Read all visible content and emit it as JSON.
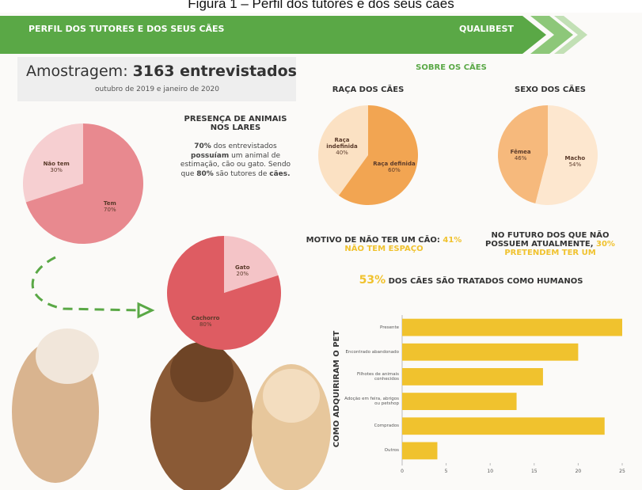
{
  "caption": "Figura 1 – Perfil dos tutores e dos seus cães",
  "banner": {
    "title": "PERFIL DOS TUTORES E DOS SEUS CÃES",
    "brand": "QUALIBEST"
  },
  "sample": {
    "label": "Amostragem:",
    "count": "3163 entrevistados",
    "period": "outubro de 2019 e janeiro de 2020"
  },
  "presence_text": [
    "70%",
    " dos entrevistados ",
    "possuíam",
    " um animal de estimação, cão ou gato. Sendo que ",
    "80%",
    " são tutores de ",
    "cães."
  ],
  "dogs_heading": "SOBRE OS CÃES",
  "reason": {
    "lead": "MOTIVO DE NÃO TER UM CÃO:",
    "highlight": "41% NÃO TEM ESPAÇO"
  },
  "future": {
    "lead": "NO FUTURO DOS QUE NÃO POSSUEM ATUALMENTE,",
    "highlight": "30% PRETENDEM TER UM"
  },
  "human": {
    "highlight": "53%",
    "text": "DOS CÃES SÃO TRATADOS COMO HUMANOS"
  },
  "chart_data": [
    {
      "type": "pie",
      "title": "PRESENÇA DE ANIMAIS NOS LARES",
      "categories": [
        "Não tem",
        "Tem"
      ],
      "values": [
        30,
        70
      ],
      "value_labels": [
        "30%",
        "70%"
      ],
      "colors": [
        "#f6cfd1",
        "#e8898f"
      ]
    },
    {
      "type": "pie",
      "categories": [
        "Gato",
        "Cachorro"
      ],
      "values": [
        20,
        80
      ],
      "value_labels": [
        "20%",
        "80%"
      ],
      "colors": [
        "#f4c4c7",
        "#de5c62"
      ]
    },
    {
      "type": "pie",
      "title": "RAÇA DOS CÃES",
      "categories": [
        "Raça indefinida",
        "Raça definida"
      ],
      "values": [
        40,
        60
      ],
      "value_labels": [
        "40%",
        "60%"
      ],
      "colors": [
        "#fbe1c3",
        "#f2a552"
      ]
    },
    {
      "type": "pie",
      "title": "SEXO DOS CÃES",
      "categories": [
        "Fêmea",
        "Macho"
      ],
      "values": [
        46,
        54
      ],
      "value_labels": [
        "46%",
        "54%"
      ],
      "colors": [
        "#f6b97c",
        "#fde7cf"
      ]
    },
    {
      "type": "bar",
      "orientation": "horizontal",
      "y_label": "COMO ADQUIRIRAM O PET",
      "categories": [
        "Presente",
        "Encontrado abandonado",
        "Filhotes de animais conhecidos",
        "Adoção em feira, abrigos ou petshop",
        "Comprados",
        "Outros"
      ],
      "values": [
        25,
        20,
        16,
        13,
        23,
        4
      ],
      "color": "#f0c22e",
      "xlim": [
        0,
        25
      ],
      "xticks": [
        0,
        5,
        10,
        15,
        20,
        25
      ]
    }
  ]
}
